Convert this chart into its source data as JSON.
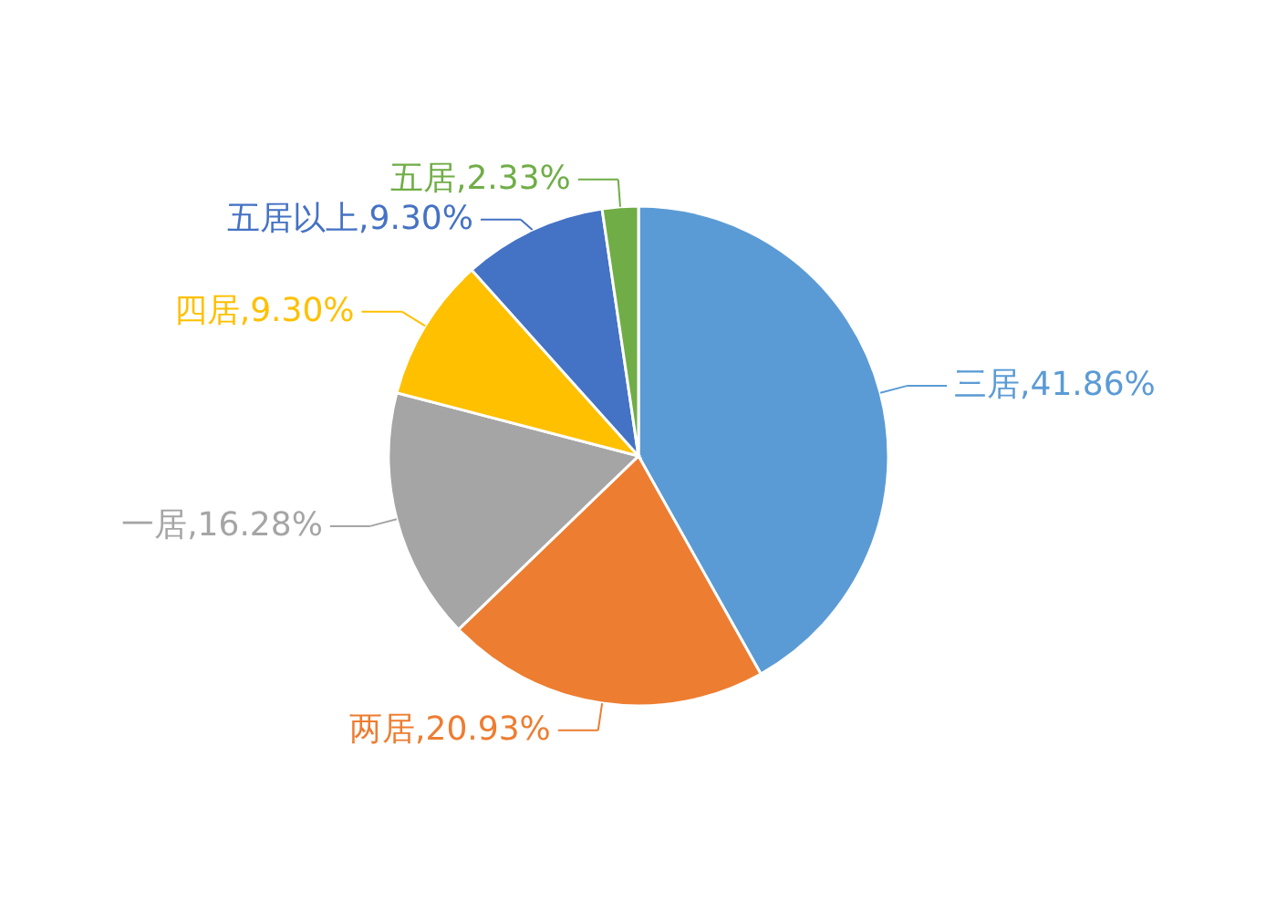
{
  "chart_data": {
    "type": "pie",
    "categories": [
      "三居",
      "两居",
      "一居",
      "四居",
      "五居以上",
      "五居"
    ],
    "values": [
      41.86,
      20.93,
      16.28,
      9.3,
      9.3,
      2.33
    ],
    "value_labels": [
      ",41.86%",
      ",20.93%",
      ",16.28%",
      ",9.30%",
      ",9.30%",
      ",2.33%"
    ],
    "colors": [
      "#5b9bd5",
      "#ed7d31",
      "#a5a5a5",
      "#ffc000",
      "#4472c4",
      "#70ad47"
    ]
  }
}
